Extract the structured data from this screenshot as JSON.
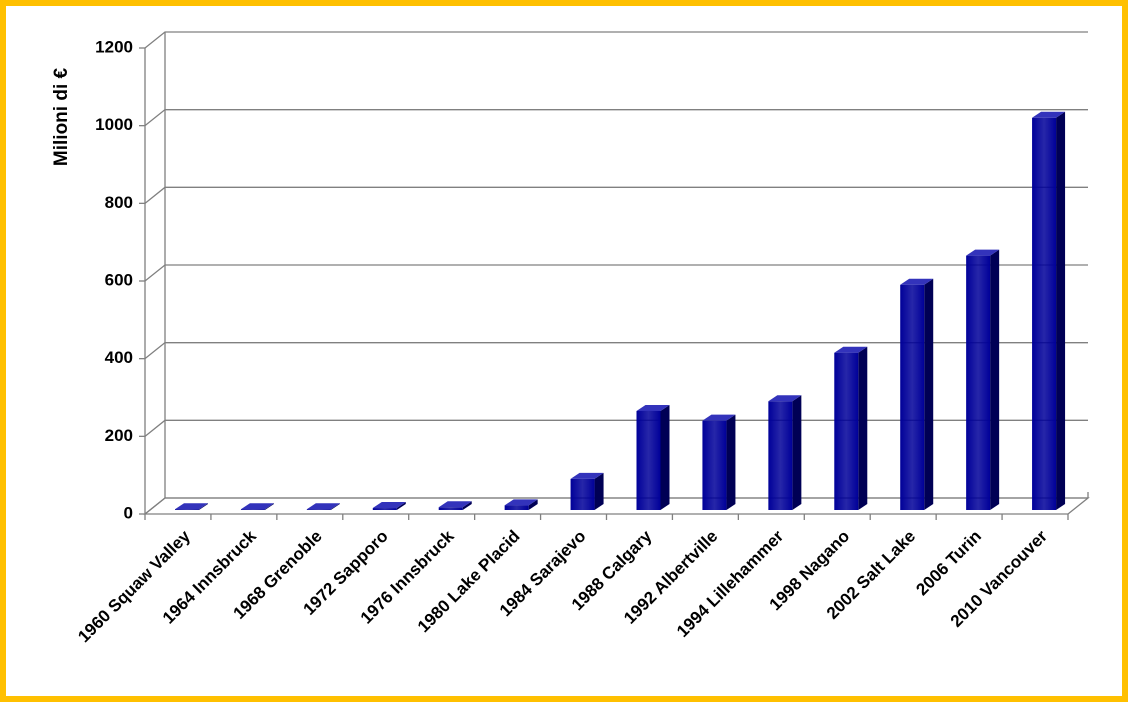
{
  "chart_data": {
    "type": "bar3d",
    "y_label": "Milioni di €",
    "categories": [
      "1960 Squaw Valley",
      "1964 Innsbruck",
      "1968 Grenoble",
      "1972 Sapporo",
      "1976 Innsbruck",
      "1980 Lake Placid",
      "1984 Sarajevo",
      "1988 Calgary",
      "1992 Albertville",
      "1994 Lillehammer",
      "1998 Nagano",
      "2002 Salt Lake",
      "2006 Turin",
      "2010 Vancouver"
    ],
    "values": [
      2,
      2,
      2,
      5,
      7,
      12,
      80,
      255,
      230,
      280,
      405,
      580,
      655,
      1010
    ],
    "color": "#000099",
    "ylim": [
      0,
      1200
    ],
    "yticks": [
      0,
      200,
      400,
      600,
      800,
      1000,
      1200
    ],
    "grid": true
  }
}
